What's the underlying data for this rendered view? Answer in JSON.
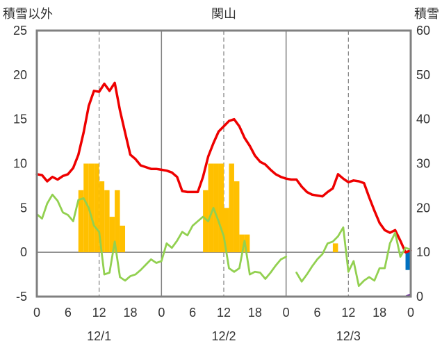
{
  "chart_data": {
    "type": "line",
    "title": "関山",
    "left_axis_title": "積雪以外",
    "right_axis_title": "積雪",
    "y_left": {
      "min": -5,
      "max": 25,
      "ticks": [
        -5,
        0,
        5,
        10,
        15,
        20,
        25
      ]
    },
    "y_right": {
      "min": 0,
      "max": 60,
      "ticks": [
        0,
        10,
        20,
        30,
        40,
        50,
        60
      ]
    },
    "x": {
      "min": 0,
      "max": 72,
      "tick_positions": [
        0,
        6,
        12,
        18,
        24,
        30,
        36,
        42,
        48,
        54,
        60,
        66,
        72
      ],
      "tick_labels": [
        "0",
        "6",
        "12",
        "18",
        "0",
        "6",
        "12",
        "18",
        "0",
        "6",
        "12",
        "18",
        "0"
      ],
      "day_separators": [
        24,
        48
      ],
      "dashed_gridlines": [
        12,
        36,
        60
      ],
      "zero_line": 0
    },
    "dates": [
      "12/1",
      "12/2",
      "12/3"
    ],
    "colors": {
      "temperature": "#ee0000",
      "green_series": "#92d050",
      "bars": "#ffc000",
      "purple_series": "#7030a0",
      "blue_bar": "#0070c0",
      "frame": "#808080",
      "grid": "#808080"
    },
    "bars": {
      "axis": "left",
      "width_hours": 1,
      "points": [
        {
          "x": 8,
          "y": 7
        },
        {
          "x": 9,
          "y": 10
        },
        {
          "x": 10,
          "y": 10
        },
        {
          "x": 11,
          "y": 10
        },
        {
          "x": 12,
          "y": 8
        },
        {
          "x": 13,
          "y": 7
        },
        {
          "x": 14,
          "y": 4
        },
        {
          "x": 15,
          "y": 7
        },
        {
          "x": 16,
          "y": 3
        },
        {
          "x": 32,
          "y": 7
        },
        {
          "x": 33,
          "y": 10
        },
        {
          "x": 34,
          "y": 10
        },
        {
          "x": 35,
          "y": 10
        },
        {
          "x": 36,
          "y": 5
        },
        {
          "x": 37,
          "y": 10
        },
        {
          "x": 38,
          "y": 8
        },
        {
          "x": 39,
          "y": 2
        },
        {
          "x": 40,
          "y": 2
        },
        {
          "x": 57,
          "y": 1
        }
      ]
    },
    "blue_bar": {
      "axis": "left",
      "x": 71,
      "width_hours": 0.8,
      "y0": -2,
      "y1": 0
    },
    "series": [
      {
        "axis": "left",
        "color": "#ee0000",
        "points": [
          [
            0,
            8.8
          ],
          [
            1,
            8.7
          ],
          [
            2,
            8.0
          ],
          [
            3,
            8.5
          ],
          [
            4,
            8.2
          ],
          [
            5,
            8.6
          ],
          [
            6,
            8.8
          ],
          [
            7,
            9.5
          ],
          [
            8,
            11.0
          ],
          [
            9,
            13.5
          ],
          [
            10,
            16.5
          ],
          [
            11,
            18.2
          ],
          [
            12,
            18.1
          ],
          [
            13,
            19.0
          ],
          [
            14,
            18.2
          ],
          [
            15,
            19.1
          ],
          [
            16,
            16.0
          ],
          [
            17,
            13.5
          ],
          [
            18,
            11.0
          ],
          [
            19,
            10.5
          ],
          [
            20,
            9.8
          ],
          [
            21,
            9.6
          ],
          [
            22,
            9.4
          ],
          [
            23,
            9.4
          ],
          [
            24,
            9.3
          ],
          [
            25,
            9.2
          ],
          [
            26,
            9.0
          ],
          [
            27,
            8.5
          ],
          [
            28,
            6.9
          ],
          [
            29,
            6.8
          ],
          [
            30,
            6.8
          ],
          [
            31,
            6.8
          ],
          [
            32,
            8.5
          ],
          [
            33,
            10.8
          ],
          [
            34,
            12.3
          ],
          [
            35,
            13.6
          ],
          [
            36,
            14.2
          ],
          [
            37,
            14.8
          ],
          [
            38,
            15.0
          ],
          [
            39,
            14.2
          ],
          [
            40,
            12.9
          ],
          [
            41,
            12.0
          ],
          [
            42,
            10.9
          ],
          [
            43,
            10.2
          ],
          [
            44,
            9.9
          ],
          [
            45,
            9.3
          ],
          [
            46,
            8.8
          ],
          [
            47,
            8.5
          ],
          [
            48,
            8.3
          ],
          [
            49,
            8.2
          ],
          [
            50,
            8.2
          ],
          [
            51,
            7.4
          ],
          [
            52,
            6.8
          ],
          [
            53,
            6.5
          ],
          [
            54,
            6.4
          ],
          [
            55,
            6.3
          ],
          [
            56,
            6.8
          ],
          [
            57,
            7.2
          ],
          [
            58,
            8.8
          ],
          [
            59,
            8.3
          ],
          [
            60,
            7.9
          ],
          [
            61,
            8.1
          ],
          [
            62,
            8.0
          ],
          [
            63,
            7.8
          ],
          [
            64,
            6.2
          ],
          [
            65,
            4.7
          ],
          [
            66,
            3.3
          ],
          [
            67,
            2.5
          ],
          [
            68,
            2.2
          ],
          [
            69,
            2.5
          ],
          [
            70,
            1.3
          ],
          [
            71,
            0.0
          ],
          [
            72,
            0.2
          ]
        ]
      },
      {
        "axis": "left",
        "color": "#92d050",
        "points": [
          [
            0,
            4.3
          ],
          [
            1,
            3.8
          ],
          [
            2,
            5.5
          ],
          [
            3,
            6.5
          ],
          [
            4,
            5.8
          ],
          [
            5,
            4.5
          ],
          [
            6,
            4.2
          ],
          [
            7,
            3.5
          ],
          [
            8,
            5.9
          ],
          [
            9,
            6.1
          ],
          [
            10,
            5.0
          ],
          [
            11,
            3.0
          ],
          [
            12,
            2.3
          ],
          [
            13,
            -2.5
          ],
          [
            14,
            -2.3
          ],
          [
            15,
            1.2
          ],
          [
            16,
            -2.8
          ],
          [
            17,
            -3.2
          ],
          [
            18,
            -2.7
          ],
          [
            19,
            -2.5
          ],
          [
            20,
            -2.0
          ],
          [
            21,
            -1.4
          ],
          [
            22,
            -0.8
          ],
          [
            23,
            -1.2
          ],
          [
            24,
            -1.0
          ],
          [
            25,
            1.0
          ],
          [
            26,
            0.5
          ],
          [
            27,
            1.3
          ],
          [
            28,
            2.3
          ],
          [
            29,
            1.9
          ],
          [
            30,
            3.0
          ],
          [
            31,
            3.5
          ],
          [
            32,
            4.0
          ],
          [
            33,
            3.5
          ],
          [
            34,
            5.0
          ],
          [
            35,
            3.5
          ],
          [
            36,
            1.8
          ],
          [
            37,
            -1.8
          ],
          [
            38,
            -2.2
          ],
          [
            39,
            -1.8
          ],
          [
            40,
            1.3
          ],
          [
            41,
            -2.5
          ],
          [
            42,
            -2.2
          ],
          [
            43,
            -2.3
          ],
          [
            44,
            -3.0
          ],
          [
            45,
            -2.3
          ],
          [
            46,
            -1.5
          ],
          [
            47,
            -0.8
          ],
          [
            48,
            -0.5
          ],
          [
            null,
            null
          ],
          [
            50,
            -2.3
          ],
          [
            51,
            -3.3
          ],
          [
            52,
            -2.5
          ],
          [
            53,
            -1.6
          ],
          [
            54,
            -0.8
          ],
          [
            55,
            -0.2
          ],
          [
            56,
            1.0
          ],
          [
            57,
            1.2
          ],
          [
            58,
            1.8
          ],
          [
            59,
            2.8
          ],
          [
            60,
            -2.2
          ],
          [
            61,
            -1.0
          ],
          [
            62,
            -3.8
          ],
          [
            63,
            -3.2
          ],
          [
            64,
            -2.8
          ],
          [
            65,
            -3.2
          ],
          [
            66,
            -1.8
          ],
          [
            67,
            -1.8
          ],
          [
            68,
            1.0
          ],
          [
            69,
            2.2
          ],
          [
            70,
            -0.5
          ],
          [
            71,
            0.5
          ],
          [
            72,
            0.3
          ]
        ]
      },
      {
        "axis": "right",
        "color": "#7030a0",
        "points": [
          [
            0,
            0.0
          ],
          [
            71,
            0.0
          ],
          [
            72,
            0.5
          ]
        ]
      }
    ]
  }
}
